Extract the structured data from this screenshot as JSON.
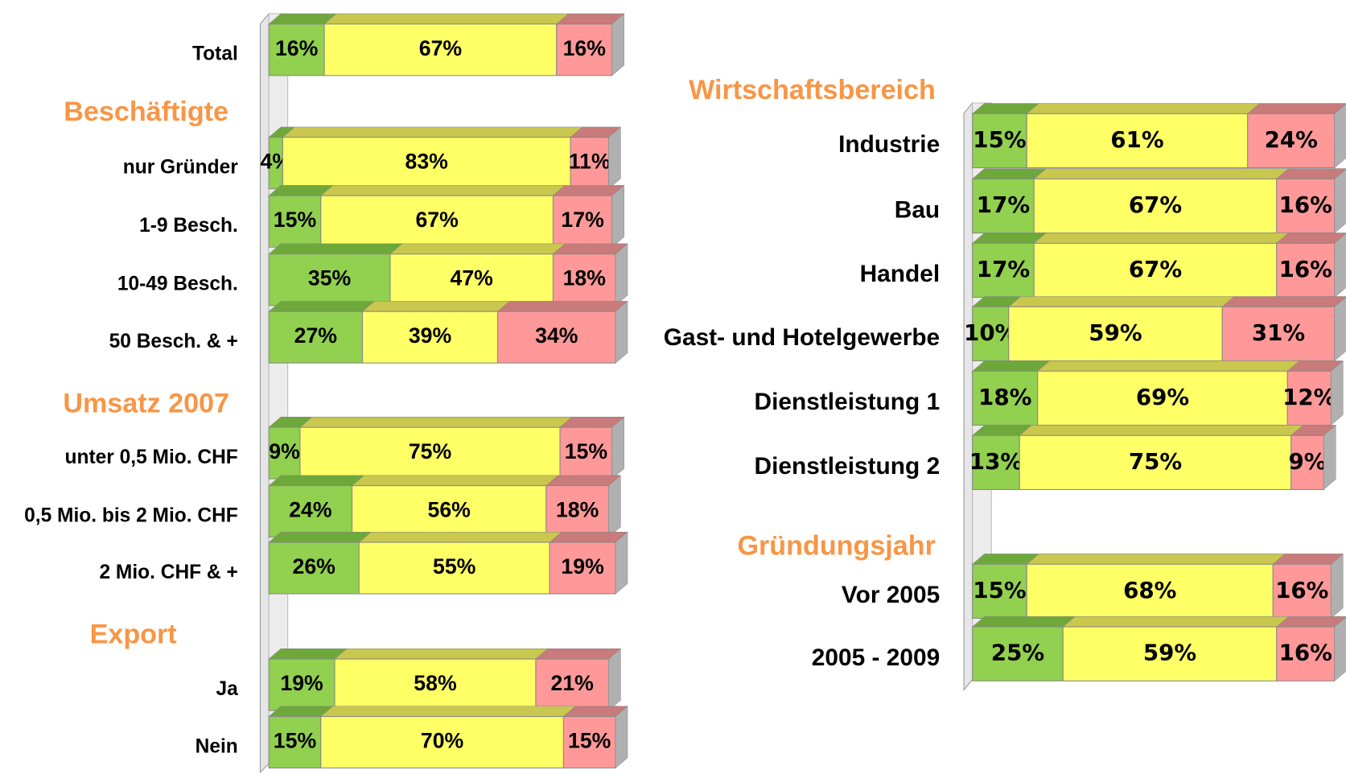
{
  "chart_data": [
    {
      "type": "bar",
      "stacked": true,
      "sections": [
        {
          "categories": [
            "Total"
          ],
          "series": [
            {
              "color": "#92d050",
              "values": [
                16
              ],
              "value_labels": [
                "16%"
              ]
            },
            {
              "color": "#ffff66",
              "values": [
                67
              ],
              "value_labels": [
                "67%"
              ]
            },
            {
              "color": "#ff9999",
              "values": [
                16
              ],
              "value_labels": [
                "16%"
              ]
            }
          ]
        },
        {
          "title": "Beschäftigte",
          "categories": [
            "nur Gründer",
            "1-9 Besch.",
            "10-49 Besch.",
            "50 Besch. & +"
          ],
          "series": [
            {
              "color": "#92d050",
              "values": [
                4,
                15,
                35,
                27
              ],
              "value_labels": [
                "4%",
                "15%",
                "35%",
                "27%"
              ]
            },
            {
              "color": "#ffff66",
              "values": [
                83,
                67,
                47,
                39
              ],
              "value_labels": [
                "83%",
                "67%",
                "47%",
                "39%"
              ]
            },
            {
              "color": "#ff9999",
              "values": [
                11,
                17,
                18,
                34
              ],
              "value_labels": [
                "11%",
                "17%",
                "18%",
                "34%"
              ]
            }
          ]
        },
        {
          "title": "Umsatz 2007",
          "categories": [
            "unter 0,5 Mio. CHF",
            "0,5 Mio. bis 2 Mio. CHF",
            "2 Mio. CHF & +"
          ],
          "series": [
            {
              "color": "#92d050",
              "values": [
                9,
                24,
                26
              ],
              "value_labels": [
                "9%",
                "24%",
                "26%"
              ]
            },
            {
              "color": "#ffff66",
              "values": [
                75,
                56,
                55
              ],
              "value_labels": [
                "75%",
                "56%",
                "55%"
              ]
            },
            {
              "color": "#ff9999",
              "values": [
                15,
                18,
                19
              ],
              "value_labels": [
                "15%",
                "18%",
                "19%"
              ]
            }
          ]
        },
        {
          "title": "Export",
          "categories": [
            "Ja",
            "Nein"
          ],
          "series": [
            {
              "color": "#92d050",
              "values": [
                19,
                15
              ],
              "value_labels": [
                "19%",
                "15%"
              ]
            },
            {
              "color": "#ffff66",
              "values": [
                58,
                70
              ],
              "value_labels": [
                "58%",
                "70%"
              ]
            },
            {
              "color": "#ff9999",
              "values": [
                21,
                15
              ],
              "value_labels": [
                "21%",
                "15%"
              ]
            }
          ]
        }
      ]
    },
    {
      "type": "bar",
      "stacked": true,
      "sections": [
        {
          "title": "Wirtschaftsbereich",
          "categories": [
            "Industrie",
            "Bau",
            "Handel",
            "Gast- und Hotelgewerbe",
            "Dienstleistung 1",
            "Dienstleistung 2"
          ],
          "series": [
            {
              "color": "#92d050",
              "values": [
                15,
                17,
                17,
                10,
                18,
                13
              ],
              "value_labels": [
                "15%",
                "17%",
                "17%",
                "10%",
                "18%",
                "13%"
              ]
            },
            {
              "color": "#ffff66",
              "values": [
                61,
                67,
                67,
                59,
                69,
                75
              ],
              "value_labels": [
                "61%",
                "67%",
                "67%",
                "59%",
                "69%",
                "75%"
              ]
            },
            {
              "color": "#ff9999",
              "values": [
                24,
                16,
                16,
                31,
                12,
                9
              ],
              "value_labels": [
                "24%",
                "16%",
                "16%",
                "31%",
                "12%",
                "9%"
              ]
            }
          ]
        },
        {
          "title": "Gründungsjahr",
          "categories": [
            "Vor 2005",
            "2005 - 2009"
          ],
          "series": [
            {
              "color": "#92d050",
              "values": [
                15,
                25
              ],
              "value_labels": [
                "15%",
                "25%"
              ]
            },
            {
              "color": "#ffff66",
              "values": [
                68,
                59
              ],
              "value_labels": [
                "68%",
                "59%"
              ]
            },
            {
              "color": "#ff9999",
              "values": [
                16,
                16
              ],
              "value_labels": [
                "16%",
                "16%"
              ]
            }
          ]
        }
      ]
    }
  ]
}
